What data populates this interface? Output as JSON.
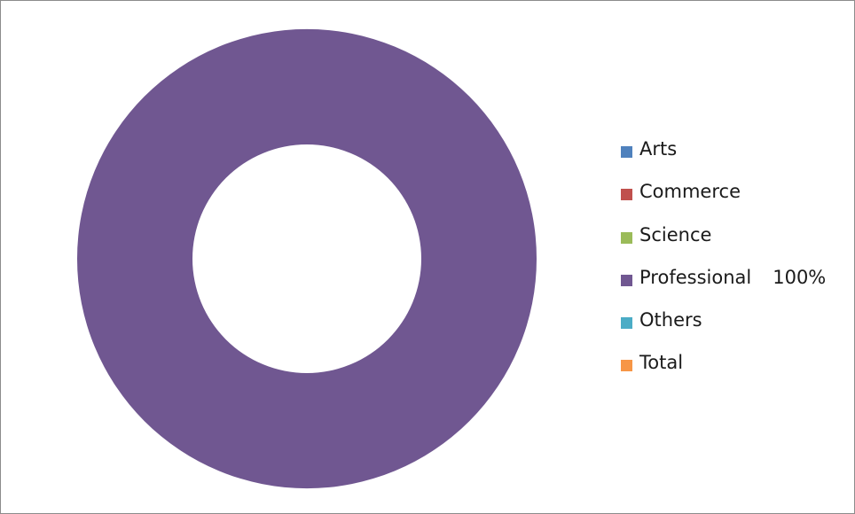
{
  "chart_data": {
    "type": "donut",
    "title": "",
    "legend_position": "right",
    "categories": [
      "Arts",
      "Commerce",
      "Science",
      "Professional",
      "Others",
      "Total"
    ],
    "values": [
      0,
      0,
      0,
      100,
      0,
      0
    ],
    "colors": [
      "#4f81bd",
      "#c0504d",
      "#9bbb59",
      "#705791",
      "#4bacc6",
      "#f79646"
    ],
    "data_labels": [
      "",
      "",
      "",
      "100%",
      "",
      ""
    ],
    "unit": "%"
  }
}
